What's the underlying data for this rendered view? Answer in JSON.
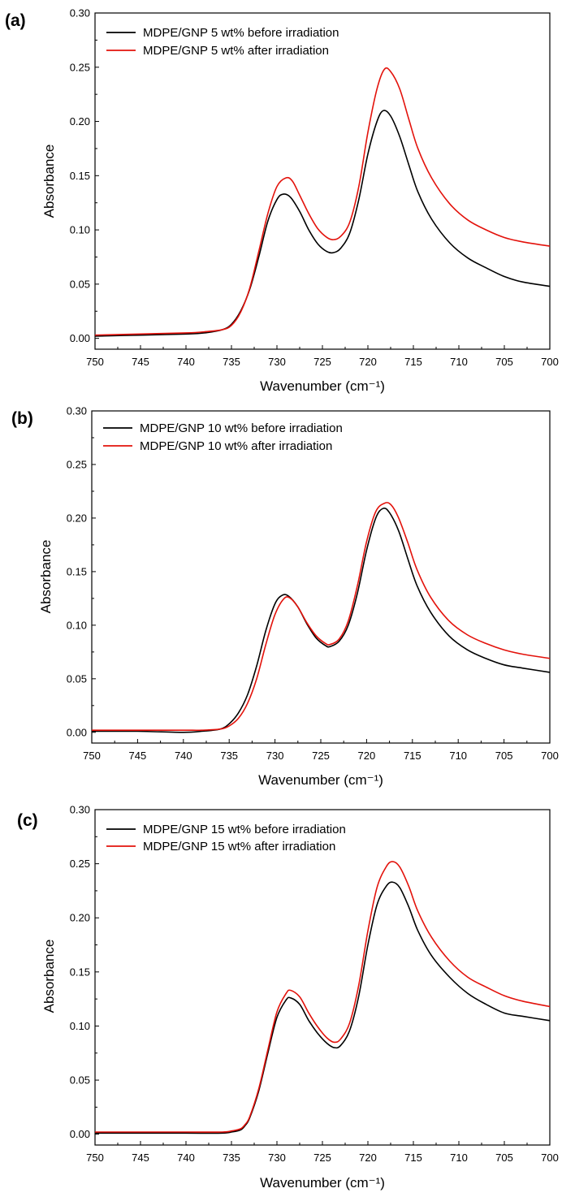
{
  "chart_data": [
    {
      "type": "line",
      "panel_label": "(a)",
      "xlabel": "Wavenumber (cm⁻¹)",
      "ylabel": "Absorbance",
      "xlim": [
        750,
        700
      ],
      "ylim": [
        -0.01,
        0.3
      ],
      "x_reversed": true,
      "xticks": [
        750,
        745,
        740,
        735,
        730,
        725,
        720,
        715,
        710,
        705,
        700
      ],
      "xtick_labels": [
        "750",
        "745",
        "740",
        "735",
        "730",
        "725",
        "720",
        "715",
        "710",
        "705",
        "700"
      ],
      "yticks": [
        0.0,
        0.05,
        0.1,
        0.15,
        0.2,
        0.25,
        0.3
      ],
      "ytick_labels": [
        "0.00",
        "0.05",
        "0.10",
        "0.15",
        "0.20",
        "0.25",
        "0.30"
      ],
      "legend_position": "top-left",
      "grid": false,
      "series": [
        {
          "name": "MDPE/GNP 5 wt% before irradiation",
          "color": "#000000",
          "x": [
            750,
            745,
            740,
            738,
            736,
            735,
            734,
            733,
            732,
            731,
            730,
            729.3,
            728.5,
            727.5,
            726.5,
            725.5,
            724.5,
            723.8,
            723,
            722,
            721,
            720,
            719,
            718.3,
            717.5,
            716.5,
            715.5,
            714.5,
            713,
            711,
            709,
            707,
            705,
            703,
            700
          ],
          "y": [
            0.002,
            0.003,
            0.004,
            0.005,
            0.008,
            0.013,
            0.025,
            0.045,
            0.075,
            0.108,
            0.128,
            0.133,
            0.13,
            0.117,
            0.1,
            0.087,
            0.08,
            0.079,
            0.083,
            0.097,
            0.128,
            0.17,
            0.2,
            0.21,
            0.205,
            0.186,
            0.16,
            0.135,
            0.11,
            0.088,
            0.074,
            0.065,
            0.057,
            0.052,
            0.048
          ]
        },
        {
          "name": "MDPE/GNP 5 wt% after irradiation",
          "color": "#e3120b",
          "x": [
            750,
            745,
            740,
            738,
            736,
            735,
            734,
            733,
            732,
            731,
            730,
            729,
            728.3,
            727.5,
            726.5,
            725.5,
            724.5,
            723.8,
            723,
            722,
            721,
            720,
            719,
            718.2,
            717.5,
            716.5,
            715.5,
            714.5,
            713,
            711,
            709,
            707,
            705,
            703,
            700
          ],
          "y": [
            0.003,
            0.004,
            0.005,
            0.006,
            0.008,
            0.012,
            0.024,
            0.046,
            0.08,
            0.115,
            0.14,
            0.148,
            0.145,
            0.132,
            0.115,
            0.101,
            0.093,
            0.091,
            0.094,
            0.107,
            0.14,
            0.19,
            0.23,
            0.248,
            0.246,
            0.23,
            0.202,
            0.175,
            0.148,
            0.124,
            0.109,
            0.1,
            0.093,
            0.089,
            0.085
          ]
        }
      ]
    },
    {
      "type": "line",
      "panel_label": "(b)",
      "xlabel": "Wavenumber (cm⁻¹)",
      "ylabel": "Absorbance",
      "xlim": [
        750,
        700
      ],
      "ylim": [
        -0.01,
        0.3
      ],
      "x_reversed": true,
      "xticks": [
        750,
        745,
        740,
        735,
        730,
        725,
        720,
        715,
        710,
        705,
        700
      ],
      "xtick_labels": [
        "750",
        "745",
        "740",
        "735",
        "730",
        "725",
        "720",
        "715",
        "710",
        "705",
        "700"
      ],
      "yticks": [
        0.0,
        0.05,
        0.1,
        0.15,
        0.2,
        0.25,
        0.3
      ],
      "ytick_labels": [
        "0.00",
        "0.05",
        "0.10",
        "0.15",
        "0.20",
        "0.25",
        "0.30"
      ],
      "legend_position": "top-left",
      "grid": false,
      "series": [
        {
          "name": "MDPE/GNP 10 wt% before irradiation",
          "color": "#000000",
          "x": [
            750,
            745,
            740,
            738,
            736,
            735,
            734,
            733,
            732,
            731,
            730,
            729.2,
            728.5,
            727.5,
            726.5,
            725.5,
            724.5,
            724,
            723,
            722,
            721,
            720,
            719,
            718.2,
            717.5,
            716.5,
            715.5,
            714.5,
            713,
            711,
            709,
            707,
            705,
            703,
            700
          ],
          "y": [
            0.001,
            0.001,
            0.0,
            0.001,
            0.003,
            0.008,
            0.018,
            0.035,
            0.062,
            0.095,
            0.12,
            0.128,
            0.127,
            0.117,
            0.101,
            0.088,
            0.081,
            0.08,
            0.085,
            0.1,
            0.13,
            0.17,
            0.2,
            0.209,
            0.205,
            0.188,
            0.162,
            0.137,
            0.112,
            0.09,
            0.077,
            0.069,
            0.063,
            0.06,
            0.056
          ]
        },
        {
          "name": "MDPE/GNP 10 wt% after irradiation",
          "color": "#e3120b",
          "x": [
            750,
            745,
            740,
            738,
            736,
            735,
            734,
            733,
            732,
            731,
            730,
            729,
            728.3,
            727.5,
            726.5,
            725.5,
            724.5,
            724,
            723,
            722,
            721,
            720,
            719,
            718,
            717.3,
            716.5,
            715.5,
            714.5,
            713,
            711,
            709,
            707,
            705,
            703,
            700
          ],
          "y": [
            0.002,
            0.002,
            0.002,
            0.002,
            0.003,
            0.006,
            0.013,
            0.027,
            0.05,
            0.082,
            0.11,
            0.125,
            0.125,
            0.117,
            0.102,
            0.09,
            0.083,
            0.082,
            0.087,
            0.104,
            0.137,
            0.178,
            0.206,
            0.214,
            0.212,
            0.2,
            0.177,
            0.152,
            0.126,
            0.104,
            0.091,
            0.083,
            0.077,
            0.073,
            0.069
          ]
        }
      ]
    },
    {
      "type": "line",
      "panel_label": "(c)",
      "xlabel": "Wavenumber (cm⁻¹)",
      "ylabel": "Absorbance",
      "xlim": [
        750,
        700
      ],
      "ylim": [
        -0.01,
        0.3
      ],
      "x_reversed": true,
      "xticks": [
        750,
        745,
        740,
        735,
        730,
        725,
        720,
        715,
        710,
        705,
        700
      ],
      "xtick_labels": [
        "750",
        "745",
        "740",
        "735",
        "730",
        "725",
        "720",
        "715",
        "710",
        "705",
        "700"
      ],
      "yticks": [
        0.0,
        0.05,
        0.1,
        0.15,
        0.2,
        0.25,
        0.3
      ],
      "ytick_labels": [
        "0.00",
        "0.05",
        "0.10",
        "0.15",
        "0.20",
        "0.25",
        "0.30"
      ],
      "legend_position": "top-left",
      "grid": false,
      "series": [
        {
          "name": "MDPE/GNP 15 wt% before irradiation",
          "color": "#000000",
          "x": [
            750,
            745,
            740,
            736,
            735,
            734,
            733.5,
            733,
            732,
            731,
            730,
            729,
            728.5,
            727.5,
            726.5,
            725.5,
            724.5,
            723.7,
            723,
            722,
            721,
            720,
            719,
            718,
            717.3,
            716.5,
            715.5,
            714.5,
            713,
            711,
            709,
            707,
            705,
            703,
            700
          ],
          "y": [
            0.001,
            0.001,
            0.001,
            0.001,
            0.002,
            0.004,
            0.008,
            0.015,
            0.04,
            0.075,
            0.108,
            0.124,
            0.126,
            0.12,
            0.105,
            0.093,
            0.084,
            0.08,
            0.082,
            0.096,
            0.128,
            0.175,
            0.212,
            0.229,
            0.233,
            0.228,
            0.21,
            0.188,
            0.165,
            0.145,
            0.13,
            0.12,
            0.112,
            0.109,
            0.105
          ]
        },
        {
          "name": "MDPE/GNP 15 wt% after irradiation",
          "color": "#e3120b",
          "x": [
            750,
            745,
            740,
            736,
            735,
            734,
            733.5,
            733,
            732,
            731,
            730,
            729,
            728.5,
            727.5,
            726.5,
            725.5,
            724.5,
            723.7,
            723,
            722,
            721,
            720,
            719,
            718,
            717.3,
            716.5,
            715.5,
            714.5,
            713,
            711,
            709,
            707,
            705,
            703,
            700
          ],
          "y": [
            0.002,
            0.002,
            0.002,
            0.002,
            0.003,
            0.005,
            0.009,
            0.016,
            0.042,
            0.078,
            0.113,
            0.13,
            0.133,
            0.127,
            0.112,
            0.099,
            0.089,
            0.085,
            0.088,
            0.103,
            0.138,
            0.188,
            0.228,
            0.247,
            0.252,
            0.247,
            0.229,
            0.206,
            0.182,
            0.16,
            0.145,
            0.136,
            0.128,
            0.123,
            0.118
          ]
        }
      ]
    }
  ]
}
